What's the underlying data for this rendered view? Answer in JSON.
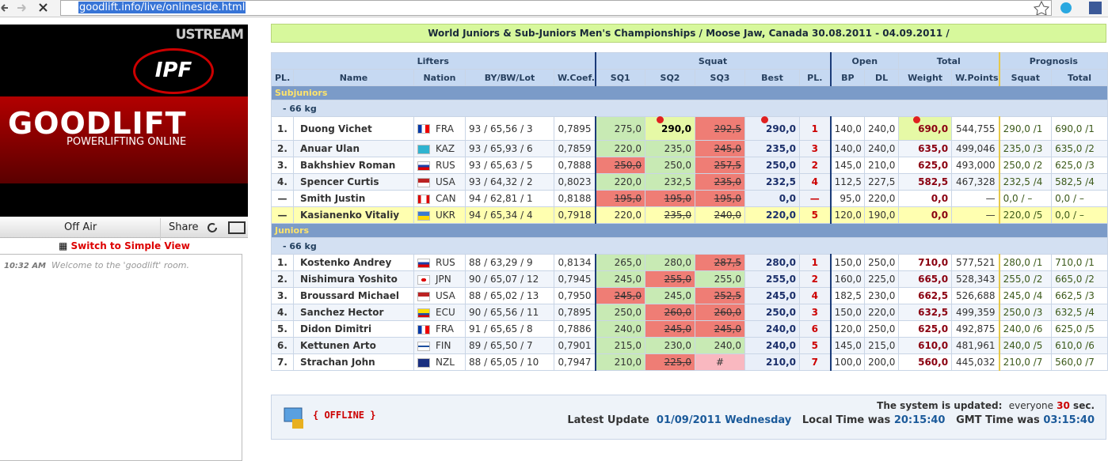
{
  "browser": {
    "url": "goodlift.info/live/onlineside.html"
  },
  "sidebar": {
    "ustream": "USTREAM",
    "ipf": "IPF",
    "goodlift": "GOODLIFT",
    "tagline": "POWERLIFTING ONLINE",
    "off_air": "Off Air",
    "share": "Share",
    "switch": "Switch to Simple View",
    "chat_time": "10:32 AM",
    "chat_msg": "Welcome to the 'goodlift' room."
  },
  "title": "World Juniors & Sub-Juniors Men's Championships / Moose Jaw, Canada 30.08.2011 - 04.09.2011 /",
  "table": {
    "groups": [
      {
        "label": "Lifters",
        "span": 5
      },
      {
        "label": "Squat",
        "span": 5
      },
      {
        "label": "Open",
        "span": 2
      },
      {
        "label": "Total",
        "span": 2
      },
      {
        "label": "Prognosis",
        "span": 2
      }
    ],
    "headers": [
      "PL.",
      "Name",
      "Nation",
      "BY/BW/Lot",
      "W.Coef.",
      "SQ1",
      "SQ2",
      "SQ3",
      "Best",
      "PL.",
      "BP",
      "DL",
      "Weight",
      "W.Points",
      "Squat",
      "Total"
    ],
    "sections": [
      {
        "name": "Subjuniors",
        "weight_class": "- 66 kg",
        "rows": [
          {
            "pl": "1.",
            "name": "Duong Vichet",
            "nation": "FRA",
            "bbl": "93 / 65,56 / 3",
            "wcoef": "0,7895",
            "sq": [
              {
                "v": "275,0",
                "s": "good"
              },
              {
                "v": "290,0",
                "s": "rec"
              },
              {
                "v": "292,5",
                "s": "fail"
              }
            ],
            "best": "290,0",
            "best_rec": true,
            "sqpl": "1",
            "bp": "140,0",
            "dl": "240,0",
            "weight": "690,0",
            "weight_rec": true,
            "wpoints": "544,755",
            "psq": "290,0 /1",
            "ptot": "690,0 /1"
          },
          {
            "pl": "2.",
            "name": "Anuar Ulan",
            "nation": "KAZ",
            "bbl": "93 / 65,93 / 6",
            "wcoef": "0,7859",
            "sq": [
              {
                "v": "220,0",
                "s": "good"
              },
              {
                "v": "235,0",
                "s": "good"
              },
              {
                "v": "245,0",
                "s": "fail"
              }
            ],
            "best": "235,0",
            "sqpl": "3",
            "bp": "140,0",
            "dl": "240,0",
            "weight": "635,0",
            "wpoints": "499,046",
            "psq": "235,0 /3",
            "ptot": "635,0 /2"
          },
          {
            "pl": "3.",
            "name": "Bakhshiev Roman",
            "nation": "RUS",
            "bbl": "93 / 65,63 / 5",
            "wcoef": "0,7888",
            "sq": [
              {
                "v": "250,0",
                "s": "fail"
              },
              {
                "v": "250,0",
                "s": "good"
              },
              {
                "v": "257,5",
                "s": "fail"
              }
            ],
            "best": "250,0",
            "sqpl": "2",
            "bp": "145,0",
            "dl": "210,0",
            "weight": "625,0",
            "wpoints": "493,000",
            "psq": "250,0 /2",
            "ptot": "625,0 /3"
          },
          {
            "pl": "4.",
            "name": "Spencer Curtis",
            "nation": "USA",
            "bbl": "93 / 64,32 / 2",
            "wcoef": "0,8023",
            "sq": [
              {
                "v": "220,0",
                "s": "good"
              },
              {
                "v": "232,5",
                "s": "good"
              },
              {
                "v": "235,0",
                "s": "fail"
              }
            ],
            "best": "232,5",
            "sqpl": "4",
            "bp": "112,5",
            "dl": "227,5",
            "weight": "582,5",
            "wpoints": "467,328",
            "psq": "232,5 /4",
            "ptot": "582,5 /4"
          },
          {
            "pl": "—",
            "name": "Smith Justin",
            "nation": "CAN",
            "bbl": "94 / 62,81 / 1",
            "wcoef": "0,8188",
            "sq": [
              {
                "v": "195,0",
                "s": "fail"
              },
              {
                "v": "195,0",
                "s": "fail"
              },
              {
                "v": "195,0",
                "s": "fail"
              }
            ],
            "best": "0,0",
            "sqpl": "—",
            "bp": "95,0",
            "dl": "220,0",
            "weight": "0,0",
            "wpoints": "—",
            "psq": "0,0 / –",
            "ptot": "0,0 / –"
          },
          {
            "pl": "—",
            "name": "Kasianenko Vitaliy",
            "nation": "UKR",
            "bbl": "94 / 65,34 / 4",
            "wcoef": "0,7918",
            "sq": [
              {
                "v": "220,0",
                "s": "good"
              },
              {
                "v": "235,0",
                "s": "fail"
              },
              {
                "v": "240,0",
                "s": "fail"
              }
            ],
            "best": "220,0",
            "sqpl": "5",
            "bp": "120,0",
            "dl": "190,0",
            "weight": "0,0",
            "wpoints": "—",
            "psq": "220,0 /5",
            "ptot": "0,0 / –",
            "active": true
          }
        ]
      },
      {
        "name": "Juniors",
        "weight_class": "- 66 kg",
        "rows": [
          {
            "pl": "1.",
            "name": "Kostenko Andrey",
            "nation": "RUS",
            "bbl": "88 / 63,29 / 9",
            "wcoef": "0,8134",
            "sq": [
              {
                "v": "265,0",
                "s": "good"
              },
              {
                "v": "280,0",
                "s": "good"
              },
              {
                "v": "287,5",
                "s": "fail"
              }
            ],
            "best": "280,0",
            "sqpl": "1",
            "bp": "150,0",
            "dl": "250,0",
            "weight": "710,0",
            "wpoints": "577,521",
            "psq": "280,0 /1",
            "ptot": "710,0 /1"
          },
          {
            "pl": "2.",
            "name": "Nishimura Yoshito",
            "nation": "JPN",
            "bbl": "90 / 65,07 / 12",
            "wcoef": "0,7945",
            "sq": [
              {
                "v": "245,0",
                "s": "good"
              },
              {
                "v": "255,0",
                "s": "fail"
              },
              {
                "v": "255,0",
                "s": "good"
              }
            ],
            "best": "255,0",
            "sqpl": "2",
            "bp": "160,0",
            "dl": "225,0",
            "weight": "665,0",
            "wpoints": "528,343",
            "psq": "255,0 /2",
            "ptot": "665,0 /2"
          },
          {
            "pl": "3.",
            "name": "Broussard Michael",
            "nation": "USA",
            "bbl": "88 / 65,02 / 13",
            "wcoef": "0,7950",
            "sq": [
              {
                "v": "245,0",
                "s": "fail"
              },
              {
                "v": "245,0",
                "s": "good"
              },
              {
                "v": "252,5",
                "s": "fail"
              }
            ],
            "best": "245,0",
            "sqpl": "4",
            "bp": "182,5",
            "dl": "230,0",
            "weight": "662,5",
            "wpoints": "526,688",
            "psq": "245,0 /4",
            "ptot": "662,5 /3"
          },
          {
            "pl": "4.",
            "name": "Sanchez Hector",
            "nation": "ECU",
            "bbl": "90 / 65,56 / 11",
            "wcoef": "0,7895",
            "sq": [
              {
                "v": "250,0",
                "s": "good"
              },
              {
                "v": "260,0",
                "s": "fail"
              },
              {
                "v": "260,0",
                "s": "fail"
              }
            ],
            "best": "250,0",
            "sqpl": "3",
            "bp": "150,0",
            "dl": "220,0",
            "weight": "632,5",
            "wpoints": "499,359",
            "psq": "250,0 /3",
            "ptot": "632,5 /4"
          },
          {
            "pl": "5.",
            "name": "Didon Dimitri",
            "nation": "FRA",
            "bbl": "91 / 65,65 / 8",
            "wcoef": "0,7886",
            "sq": [
              {
                "v": "240,0",
                "s": "good"
              },
              {
                "v": "245,0",
                "s": "fail"
              },
              {
                "v": "245,0",
                "s": "fail"
              }
            ],
            "best": "240,0",
            "sqpl": "6",
            "bp": "120,0",
            "dl": "250,0",
            "weight": "625,0",
            "wpoints": "492,875",
            "psq": "240,0 /6",
            "ptot": "625,0 /5"
          },
          {
            "pl": "6.",
            "name": "Kettunen Arto",
            "nation": "FIN",
            "bbl": "89 / 65,50 / 7",
            "wcoef": "0,7901",
            "sq": [
              {
                "v": "215,0",
                "s": "good"
              },
              {
                "v": "230,0",
                "s": "good"
              },
              {
                "v": "240,0",
                "s": "good"
              }
            ],
            "best": "240,0",
            "sqpl": "5",
            "bp": "145,0",
            "dl": "215,0",
            "weight": "610,0",
            "wpoints": "481,961",
            "psq": "240,0 /5",
            "ptot": "610,0 /6"
          },
          {
            "pl": "7.",
            "name": "Strachan John",
            "nation": "NZL",
            "bbl": "88 / 65,05 / 10",
            "wcoef": "0,7947",
            "sq": [
              {
                "v": "210,0",
                "s": "good"
              },
              {
                "v": "225,0",
                "s": "fail"
              },
              {
                "v": "#",
                "s": "pending"
              }
            ],
            "best": "210,0",
            "sqpl": "7",
            "bp": "100,0",
            "dl": "200,0",
            "weight": "560,0",
            "wpoints": "445,032",
            "psq": "210,0 /7",
            "ptot": "560,0 /7"
          }
        ]
      }
    ]
  },
  "footer": {
    "status": "{ OFFLINE }",
    "updated": "The system is updated:",
    "every": "everyone",
    "seconds": "30",
    "sec": "sec.",
    "latest": "Latest Update",
    "date": "01/09/2011 Wednesday",
    "local": "Local Time was",
    "local_time": "20:15:40",
    "gmt": "GMT Time was",
    "gmt_time": "03:15:40"
  }
}
